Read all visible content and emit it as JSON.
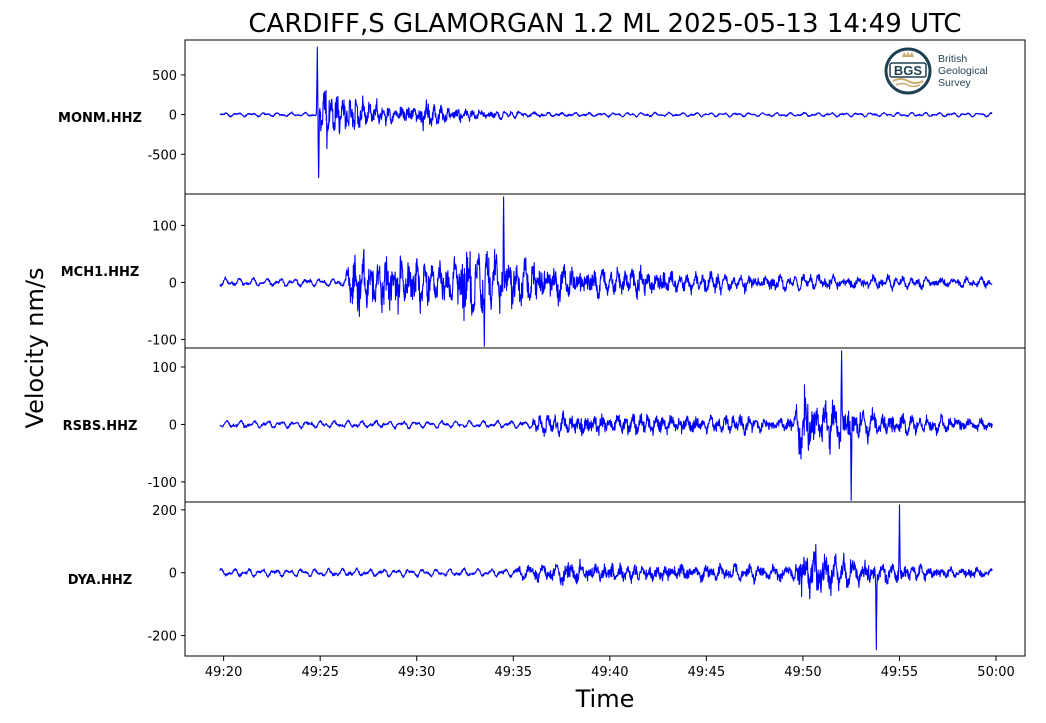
{
  "chart_data": {
    "type": "line",
    "title": "CARDIFF,S GLAMORGAN 1.2 ML   2025-05-13 14:49 UTC",
    "xlabel": "Time",
    "ylabel": "Velocity nm/s",
    "x_ticks": [
      "49:20",
      "49:25",
      "49:30",
      "49:35",
      "49:40",
      "49:45",
      "49:50",
      "49:55",
      "50:00"
    ],
    "x_tick_seconds": [
      1160,
      1165,
      1170,
      1175,
      1180,
      1185,
      1190,
      1195,
      1200
    ],
    "x_range_seconds": [
      1158,
      1201.5
    ],
    "trace_range_seconds": [
      1159.8,
      1199.8
    ],
    "color": "#0000ff",
    "grid": false,
    "panels": [
      {
        "channel": "MONM.HHZ",
        "ylim": [
          -1000,
          940
        ],
        "yticks": [
          500,
          0,
          -500
        ],
        "ytick_labels": [
          "500",
          "0",
          "-500"
        ],
        "noise": 25,
        "bursts": [
          {
            "t": 1164.8,
            "amp": 380,
            "decay": 3.5,
            "dur": 35,
            "freq": 3.0
          },
          {
            "t": 1170.0,
            "amp": 160,
            "decay": 2.5,
            "dur": 20,
            "freq": 2.5
          }
        ],
        "spikes": [
          {
            "t": 1164.85,
            "v": 850
          },
          {
            "t": 1164.92,
            "v": -880
          }
        ]
      },
      {
        "channel": "MCH1.HHZ",
        "ylim": [
          -115,
          155
        ],
        "yticks": [
          100,
          0,
          -100
        ],
        "ytick_labels": [
          "100",
          "0",
          "-100"
        ],
        "noise": 7,
        "bursts": [
          {
            "t": 1166.3,
            "amp": 55,
            "decay": 14,
            "dur": 35,
            "freq": 2.5
          },
          {
            "t": 1172.0,
            "amp": 65,
            "decay": 4,
            "dur": 12,
            "freq": 2.0
          }
        ],
        "spikes": [
          {
            "t": 1174.5,
            "v": 150
          },
          {
            "t": 1173.5,
            "v": -112
          }
        ]
      },
      {
        "channel": "RSBS.HHZ",
        "ylim": [
          -135,
          133
        ],
        "yticks": [
          100,
          0,
          -100
        ],
        "ytick_labels": [
          "100",
          "0",
          "-100"
        ],
        "noise": 6,
        "bursts": [
          {
            "t": 1175.9,
            "amp": 18,
            "decay": 30,
            "dur": 30,
            "freq": 2.5
          },
          {
            "t": 1189.5,
            "amp": 55,
            "decay": 4,
            "dur": 10,
            "freq": 2.0
          }
        ],
        "spikes": [
          {
            "t": 1192.0,
            "v": 128
          },
          {
            "t": 1192.5,
            "v": -132
          }
        ]
      },
      {
        "channel": "DYA.HHZ",
        "ylim": [
          -265,
          225
        ],
        "yticks": [
          200,
          0,
          -200
        ],
        "ytick_labels": [
          "200",
          "0",
          "-200"
        ],
        "noise": 12,
        "bursts": [
          {
            "t": 1175.0,
            "amp": 22,
            "decay": 25,
            "dur": 25,
            "freq": 1.5
          },
          {
            "t": 1177.2,
            "amp": 25,
            "decay": 20,
            "dur": 22,
            "freq": 2.5
          },
          {
            "t": 1189.5,
            "amp": 80,
            "decay": 4,
            "dur": 10,
            "freq": 2.0
          }
        ],
        "spikes": [
          {
            "t": 1195.0,
            "v": 215
          },
          {
            "t": 1193.8,
            "v": -245
          }
        ]
      }
    ]
  },
  "logo": {
    "mark": "BGS",
    "lines": [
      "British",
      "Geological",
      "Survey"
    ],
    "ring_color": "#1f3f52",
    "accent_color": "#c9a96e"
  }
}
